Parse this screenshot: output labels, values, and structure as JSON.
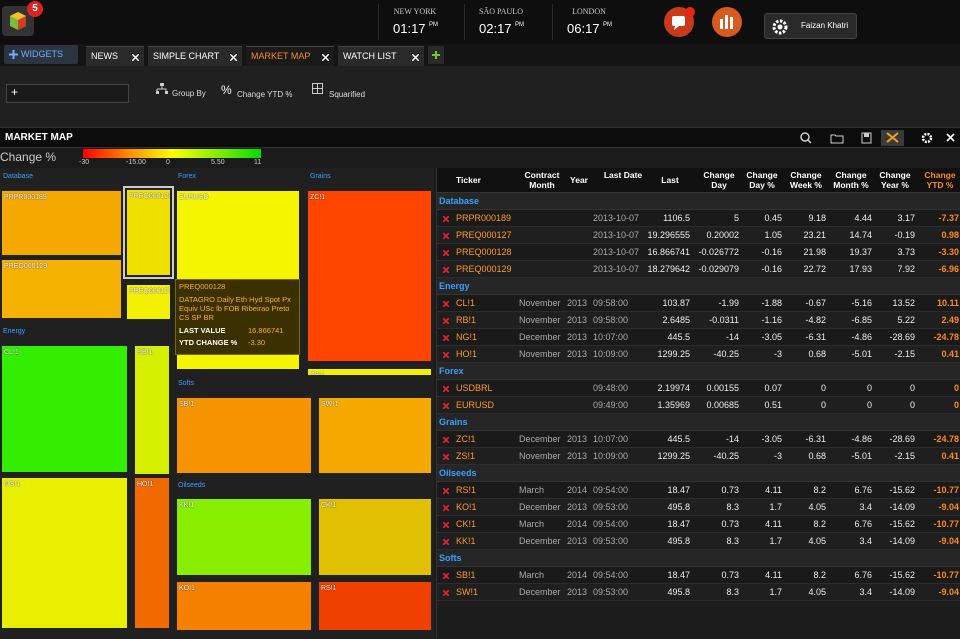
{
  "header": {
    "badge": "5",
    "clocks": [
      {
        "city": "NEW YORK",
        "time": "01:17",
        "ampm": "PM"
      },
      {
        "city": "SÃO PAULO",
        "time": "02:17",
        "ampm": "PM"
      },
      {
        "city": "LONDON",
        "time": "06:17",
        "ampm": "PM"
      }
    ],
    "user": "Faizan Khatri"
  },
  "tabs": {
    "widgets": "WIDGETS",
    "items": [
      "NEWS",
      "SIMPLE CHART",
      "MARKET MAP",
      "WATCH LIST"
    ],
    "active": 2
  },
  "toolbar": {
    "group_by": "Group By",
    "percent": "%",
    "change": "Change YTD %",
    "layout": "Squarified"
  },
  "panel": {
    "title": "MARKET MAP",
    "legend_title": "Change %",
    "scale": [
      "-30",
      "-15.00",
      "0",
      "5.50",
      "11"
    ],
    "scale_colors": [
      "#ff0000",
      "#ff8800",
      "#ffff00",
      "#88ee00",
      "#00dd00"
    ]
  },
  "treemap": {
    "groups": [
      "Database",
      "Forex",
      "Grains",
      "Energy",
      "Softs",
      "Oilseeds"
    ],
    "tiles": [
      {
        "label": "PRPR000189",
        "color": "#f5a800"
      },
      {
        "label": "PREQ000129",
        "color": "#f5b200"
      },
      {
        "label": "PREQ000128",
        "color": "#f0e000"
      },
      {
        "label": "PREQ000127",
        "color": "#f2f000"
      },
      {
        "label": "EURUSD",
        "color": "#f5f500"
      },
      {
        "label": "ZC!1",
        "color": "#ff4500"
      },
      {
        "label": "ZS!1",
        "color": "#f0f000"
      },
      {
        "label": "CL!1",
        "color": "#33ee00"
      },
      {
        "label": "NG!1",
        "color": "#e8f000"
      },
      {
        "label": "RB!1",
        "color": "#d4f000"
      },
      {
        "label": "HO!1",
        "color": "#f06a00"
      },
      {
        "label": "SB!1",
        "color": "#f59400"
      },
      {
        "label": "SW!1",
        "color": "#f5a800"
      },
      {
        "label": "KK!1",
        "color": "#88ee00"
      },
      {
        "label": "CK!1",
        "color": "#e0c000"
      },
      {
        "label": "KO!1",
        "color": "#f58000"
      },
      {
        "label": "RS!1",
        "color": "#f04000"
      }
    ]
  },
  "tooltip": {
    "title": "PREQ000128",
    "description": "DATAGRO Daily Eth Hyd Spot Px Equiv USc lb FOB Ribeirao Preto CS SP BR",
    "last_label": "LAST VALUE",
    "last_value": "16.866741",
    "ytd_label": "YTD CHANGE %",
    "ytd_value": "-3.30"
  },
  "table": {
    "headers": [
      "Ticker",
      "Contract Month",
      "Year",
      "Last Date",
      "Last",
      "Change Day",
      "Change Day %",
      "Change Week %",
      "Change Month %",
      "Change Year %",
      "Change YTD %"
    ],
    "groups": [
      {
        "name": "Database",
        "rows": [
          [
            "PRPR000189",
            null,
            null,
            "2013-10-07",
            "1106.5",
            "5",
            "0.45",
            "9.18",
            "4.44",
            "3.17",
            "-7.37"
          ],
          [
            "PREQ000127",
            null,
            null,
            "2013-10-07",
            "19.296555",
            "0.20002",
            "1.05",
            "23.21",
            "14.74",
            "-0.19",
            "0.98"
          ],
          [
            "PREQ000128",
            null,
            null,
            "2013-10-07",
            "16.866741",
            "-0.026772",
            "-0.16",
            "21.98",
            "19.37",
            "3.73",
            "-3.30"
          ],
          [
            "PREQ000129",
            null,
            null,
            "2013-10-07",
            "18.279642",
            "-0.029079",
            "-0.16",
            "22.72",
            "17.93",
            "7.92",
            "-6.96"
          ]
        ]
      },
      {
        "name": "Energy",
        "rows": [
          [
            "CL!1",
            "November",
            "2013",
            "09:58:00",
            "103.87",
            "-1.99",
            "-1.88",
            "-0.67",
            "-5.16",
            "13.52",
            "10.11"
          ],
          [
            "RB!1",
            "November",
            "2013",
            "09:58:00",
            "2.6485",
            "-0.0311",
            "-1.16",
            "-4.82",
            "-6.85",
            "5.22",
            "2.49"
          ],
          [
            "NG!1",
            "December",
            "2013",
            "10:07:00",
            "445.5",
            "-14",
            "-3.05",
            "-6.31",
            "-4.86",
            "-28.69",
            "-24.78"
          ],
          [
            "HO!1",
            "November",
            "2013",
            "10:09:00",
            "1299.25",
            "-40.25",
            "-3",
            "0.68",
            "-5.01",
            "-2.15",
            "0.41"
          ]
        ]
      },
      {
        "name": "Forex",
        "rows": [
          [
            "USDBRL",
            null,
            null,
            "09:48:00",
            "2.19974",
            "0.00155",
            "0.07",
            "0",
            "0",
            "0",
            "0"
          ],
          [
            "EURUSD",
            null,
            null,
            "09:49:00",
            "1.35969",
            "0.00685",
            "0.51",
            "0",
            "0",
            "0",
            "0"
          ]
        ]
      },
      {
        "name": "Grains",
        "rows": [
          [
            "ZC!1",
            "December",
            "2013",
            "10:07:00",
            "445.5",
            "-14",
            "-3.05",
            "-6.31",
            "-4.86",
            "-28.69",
            "-24.78"
          ],
          [
            "ZS!1",
            "November",
            "2013",
            "10:09:00",
            "1299.25",
            "-40.25",
            "-3",
            "0.68",
            "-5.01",
            "-2.15",
            "0.41"
          ]
        ]
      },
      {
        "name": "Oilseeds",
        "rows": [
          [
            "RS!1",
            "March",
            "2014",
            "09:54:00",
            "18.47",
            "0.73",
            "4.11",
            "8.2",
            "6.76",
            "-15.62",
            "-10.77"
          ],
          [
            "KO!1",
            "December",
            "2013",
            "09:53:00",
            "495.8",
            "8.3",
            "1.7",
            "4.05",
            "3.4",
            "-14.09",
            "-9.04"
          ],
          [
            "CK!1",
            "March",
            "2014",
            "09:54:00",
            "18.47",
            "0.73",
            "4.11",
            "8.2",
            "6.76",
            "-15.62",
            "-10.77"
          ],
          [
            "KK!1",
            "December",
            "2013",
            "09:53:00",
            "495.8",
            "8.3",
            "1.7",
            "4.05",
            "3.4",
            "-14.09",
            "-9.04"
          ]
        ]
      },
      {
        "name": "Softs",
        "rows": [
          [
            "SB!1",
            "March",
            "2014",
            "09:54:00",
            "18.47",
            "0.73",
            "4.11",
            "8.2",
            "6.76",
            "-15.62",
            "-10.77"
          ],
          [
            "SW!1",
            "December",
            "2013",
            "09:53:00",
            "495.8",
            "8.3",
            "1.7",
            "4.05",
            "3.4",
            "-14.09",
            "-9.04"
          ]
        ]
      }
    ]
  }
}
